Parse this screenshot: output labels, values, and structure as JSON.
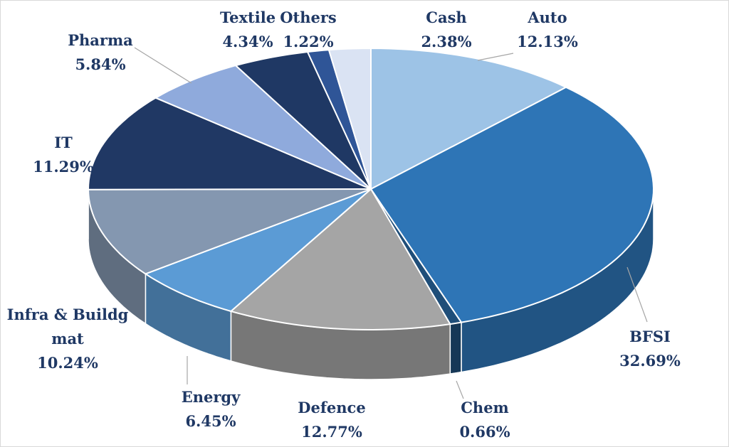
{
  "chart_data": {
    "type": "pie",
    "title": "",
    "style": "3d-exploded-tilted",
    "slices": [
      {
        "name": "Auto",
        "value": 12.13,
        "label": "12.13%",
        "color": "#9dc3e6"
      },
      {
        "name": "BFSI",
        "value": 32.69,
        "label": "32.69%",
        "color": "#2e75b6"
      },
      {
        "name": "Chem",
        "value": 0.66,
        "label": "0.66%",
        "color": "#1f4e79"
      },
      {
        "name": "Defence",
        "value": 12.77,
        "label": "12.77%",
        "color": "#a5a5a5"
      },
      {
        "name": "Energy",
        "value": 6.45,
        "label": "6.45%",
        "color": "#5b9bd5"
      },
      {
        "name": "Infra & Buildg mat",
        "value": 10.24,
        "label": "10.24%",
        "color": "#8497b0"
      },
      {
        "name": "IT",
        "value": 11.29,
        "label": "11.29%",
        "color": "#203864"
      },
      {
        "name": "Pharma",
        "value": 5.84,
        "label": "5.84%",
        "color": "#8faadc"
      },
      {
        "name": "Textile",
        "value": 4.34,
        "label": "4.34%",
        "color": "#1f3864"
      },
      {
        "name": "Others",
        "value": 1.22,
        "label": "1.22%",
        "color": "#2f5597"
      },
      {
        "name": "Cash",
        "value": 2.38,
        "label": "2.38%",
        "color": "#dae3f3"
      }
    ],
    "label_color": "#1f3864",
    "legend": "none"
  }
}
